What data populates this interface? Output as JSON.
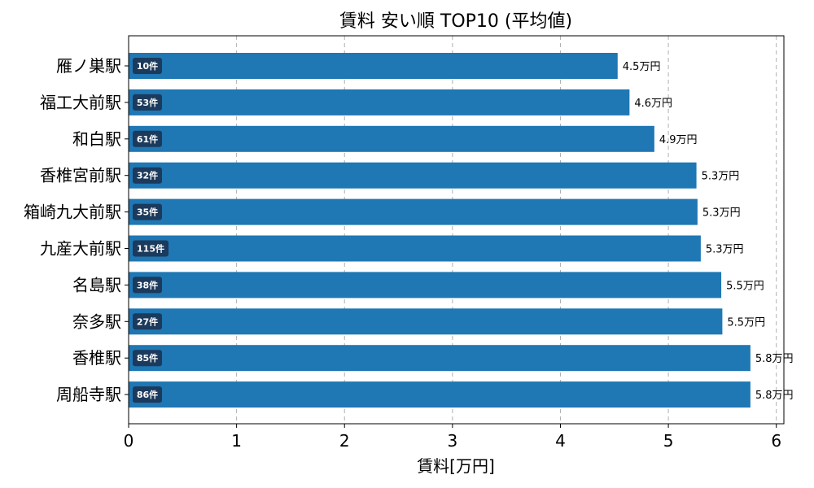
{
  "chart_data": {
    "type": "bar",
    "orientation": "horizontal",
    "title": "賃料 安い順 TOP10 (平均値)",
    "xlabel": "賃料[万円]",
    "ylabel": "",
    "xlim": [
      0,
      6.07
    ],
    "xticks": [
      "0",
      "1",
      "2",
      "3",
      "4",
      "5",
      "6"
    ],
    "grid": "x-dashed",
    "categories": [
      "雁ノ巣駅",
      "福工大前駅",
      "和白駅",
      "香椎宮前駅",
      "箱崎九大前駅",
      "九産大前駅",
      "名島駅",
      "奈多駅",
      "香椎駅",
      "周船寺駅"
    ],
    "values": [
      4.53,
      4.64,
      4.87,
      5.26,
      5.27,
      5.3,
      5.49,
      5.5,
      5.76,
      5.76
    ],
    "value_labels": [
      "4.5万円",
      "4.6万円",
      "4.9万円",
      "5.3万円",
      "5.3万円",
      "5.3万円",
      "5.5万円",
      "5.5万円",
      "5.8万円",
      "5.8万円"
    ],
    "count_labels": [
      "10件",
      "53件",
      "61件",
      "32件",
      "35件",
      "115件",
      "38件",
      "27件",
      "85件",
      "86件"
    ],
    "bar_color": "#1f77b4",
    "badge_color": "#1b3a5c"
  }
}
